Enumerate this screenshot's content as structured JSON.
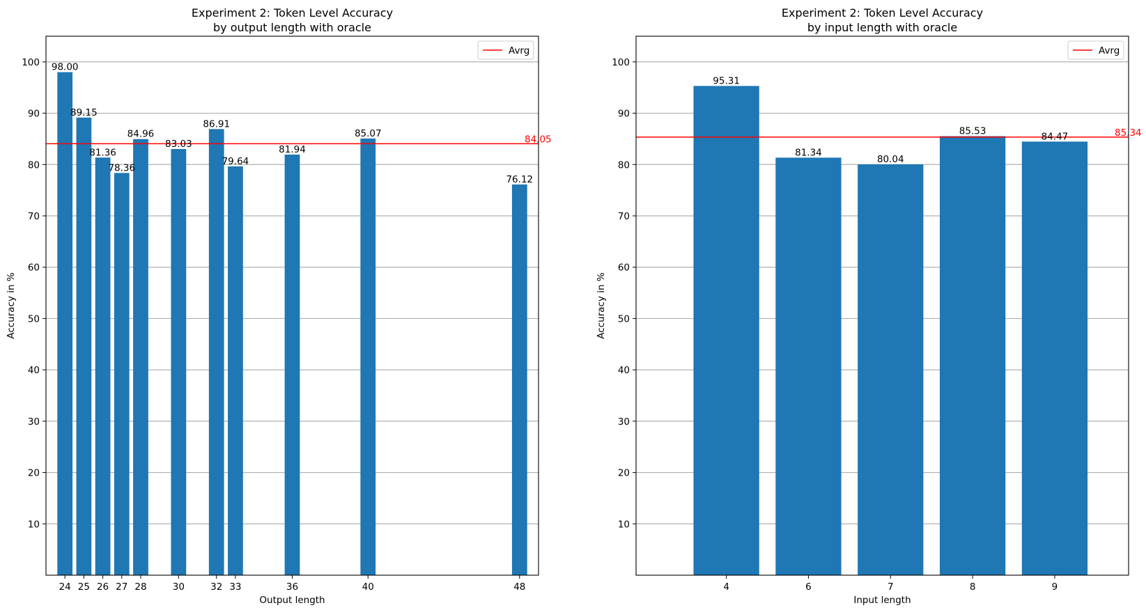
{
  "chart_data": [
    {
      "type": "bar",
      "title": "Experiment 2: Token Level Accuracy",
      "subtitle": "by output length with oracle",
      "xlabel": "Output length",
      "ylabel": "Accuracy in %",
      "xlim": [
        23,
        49
      ],
      "ylim": [
        0,
        105
      ],
      "yticks": [
        10,
        20,
        30,
        40,
        50,
        60,
        70,
        80,
        90,
        100
      ],
      "grid": "y",
      "x": [
        24,
        25,
        26,
        27,
        28,
        30,
        32,
        33,
        36,
        40,
        48
      ],
      "tick_labels": [
        "24",
        "25",
        "26",
        "27",
        "28",
        "30",
        "32",
        "33",
        "36",
        "40",
        "48"
      ],
      "values": [
        98.0,
        89.15,
        81.36,
        78.36,
        84.96,
        83.03,
        86.91,
        79.64,
        81.94,
        85.07,
        76.12
      ],
      "value_labels": [
        "98.00",
        "89.15",
        "81.36",
        "78.36",
        "84.96",
        "83.03",
        "86.91",
        "79.64",
        "81.94",
        "85.07",
        "76.12"
      ],
      "bar_width": 0.8,
      "bar_color": "#1f77b4",
      "average": {
        "value": 84.05,
        "label": "84.05",
        "color": "#ff0000"
      },
      "legend": {
        "label": "Avrg",
        "placement": "top-right"
      }
    },
    {
      "type": "bar",
      "title": "Experiment 2: Token Level Accuracy",
      "subtitle": "by input length with oracle",
      "xlabel": "Input length",
      "ylabel": "Accuracy in %",
      "xlim": [
        -1.1,
        4.9
      ],
      "ylim": [
        0,
        105
      ],
      "yticks": [
        10,
        20,
        30,
        40,
        50,
        60,
        70,
        80,
        90,
        100
      ],
      "grid": "y",
      "x": [
        0,
        1,
        2,
        3,
        4
      ],
      "tick_labels": [
        "4",
        "6",
        "7",
        "8",
        "9"
      ],
      "values": [
        95.31,
        81.34,
        80.04,
        85.53,
        84.47
      ],
      "value_labels": [
        "95.31",
        "81.34",
        "80.04",
        "85.53",
        "84.47"
      ],
      "bar_width": 0.8,
      "bar_color": "#1f77b4",
      "average": {
        "value": 85.34,
        "label": "85.34",
        "color": "#ff0000"
      },
      "legend": {
        "label": "Avrg",
        "placement": "top-right"
      }
    }
  ]
}
